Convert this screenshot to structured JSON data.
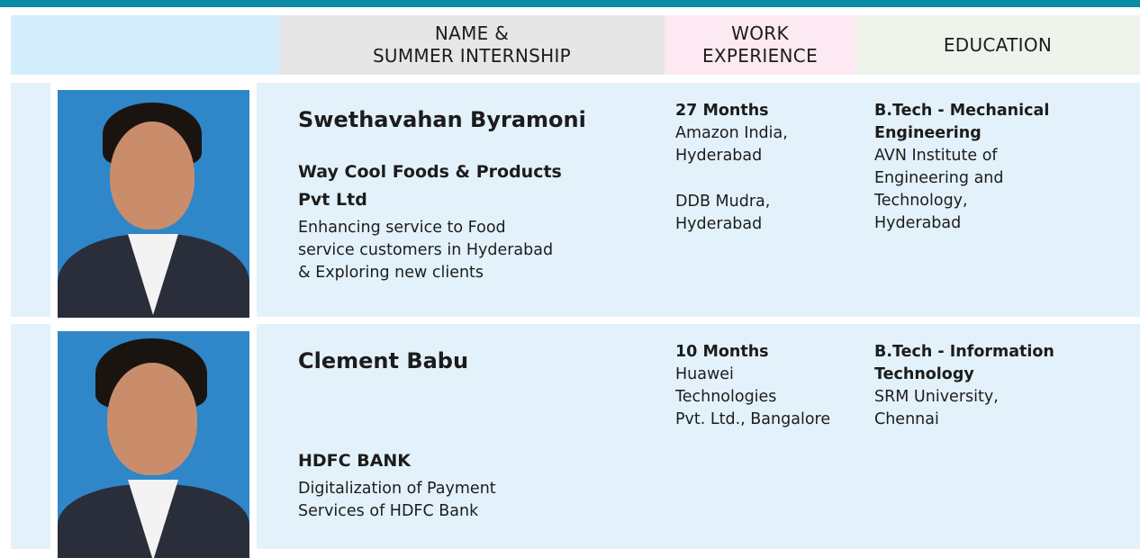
{
  "header": {
    "name": [
      "NAME &",
      "SUMMER INTERNSHIP"
    ],
    "work": [
      "WORK",
      "EXPERIENCE"
    ],
    "education": [
      "EDUCATION"
    ]
  },
  "profiles": [
    {
      "name": "Swethavahan Byramoni",
      "company": [
        "Way Cool Foods & Products",
        "Pvt Ltd"
      ],
      "project": [
        "Enhancing service to Food",
        "service customers in Hyderabad",
        "& Exploring new clients"
      ],
      "experience": [
        {
          "duration": "27 Months",
          "lines": [
            "Amazon India,",
            "Hyderabad"
          ]
        },
        {
          "lines": [
            "DDB Mudra,",
            "Hyderabad"
          ]
        }
      ],
      "education": {
        "degree": [
          "B.Tech - Mechanical",
          "Engineering"
        ],
        "lines": [
          "AVN Institute of",
          "Engineering and",
          "Technology,",
          "Hyderabad"
        ]
      }
    },
    {
      "name": "Clement Babu",
      "company": [
        "HDFC BANK"
      ],
      "project": [
        "Digitalization of Payment",
        "Services of HDFC Bank"
      ],
      "experience": [
        {
          "duration": "10 Months",
          "lines": [
            "Huawei",
            "Technologies",
            "Pvt. Ltd., Bangalore"
          ]
        }
      ],
      "education": {
        "degree": [
          "B.Tech - Information",
          "Technology"
        ],
        "lines": [
          "SRM University,",
          "Chennai"
        ]
      }
    }
  ]
}
